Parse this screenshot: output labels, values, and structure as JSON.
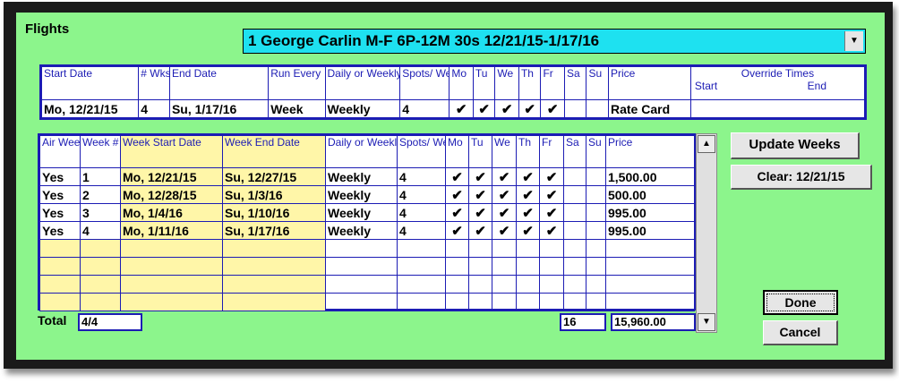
{
  "title": "Flights",
  "flight_select": {
    "value": "1 George Carlin M-F 6P-12M 30s 12/21/15-1/17/16"
  },
  "summary": {
    "headers": {
      "start_date": "Start Date",
      "wks": "# Wks",
      "end_date": "End Date",
      "run_every": "Run Every",
      "daily_weekly": "Daily or Weekly",
      "spots_week": "Spots/ Week",
      "mo": "Mo",
      "tu": "Tu",
      "we": "We",
      "th": "Th",
      "fr": "Fr",
      "sa": "Sa",
      "su": "Su",
      "price": "Price",
      "override": "Override Times",
      "override_start": "Start",
      "override_end": "End"
    },
    "row": {
      "start_date": "Mo, 12/21/15",
      "wks": "4",
      "end_date": "Su, 1/17/16",
      "run_every": "Week",
      "daily_weekly": "Weekly",
      "spots_week": "4",
      "mo": "✔",
      "tu": "✔",
      "we": "✔",
      "th": "✔",
      "fr": "✔",
      "sa": "",
      "su": "",
      "price": "Rate Card",
      "override": ""
    }
  },
  "weeks": {
    "headers": {
      "air_week": "Air Week",
      "week_num": "Week #",
      "week_start": "Week Start Date",
      "week_end": "Week End Date",
      "daily_weekly": "Daily or Weekly",
      "spots_week": "Spots/ Week",
      "mo": "Mo",
      "tu": "Tu",
      "we": "We",
      "th": "Th",
      "fr": "Fr",
      "sa": "Sa",
      "su": "Su",
      "price": "Price"
    },
    "rows": [
      {
        "air": "Yes",
        "num": "1",
        "start": "Mo, 12/21/15",
        "end": "Su, 12/27/15",
        "dw": "Weekly",
        "spots": "4",
        "mo": "✔",
        "tu": "✔",
        "we": "✔",
        "th": "✔",
        "fr": "✔",
        "sa": "",
        "su": "",
        "price": "1,500.00"
      },
      {
        "air": "Yes",
        "num": "2",
        "start": "Mo, 12/28/15",
        "end": "Su, 1/3/16",
        "dw": "Weekly",
        "spots": "4",
        "mo": "✔",
        "tu": "✔",
        "we": "✔",
        "th": "✔",
        "fr": "✔",
        "sa": "",
        "su": "",
        "price": "500.00"
      },
      {
        "air": "Yes",
        "num": "3",
        "start": "Mo, 1/4/16",
        "end": "Su, 1/10/16",
        "dw": "Weekly",
        "spots": "4",
        "mo": "✔",
        "tu": "✔",
        "we": "✔",
        "th": "✔",
        "fr": "✔",
        "sa": "",
        "su": "",
        "price": "995.00"
      },
      {
        "air": "Yes",
        "num": "4",
        "start": "Mo, 1/11/16",
        "end": "Su, 1/17/16",
        "dw": "Weekly",
        "spots": "4",
        "mo": "✔",
        "tu": "✔",
        "we": "✔",
        "th": "✔",
        "fr": "✔",
        "sa": "",
        "su": "",
        "price": "995.00"
      },
      {
        "air": "",
        "num": "",
        "start": "",
        "end": "",
        "dw": "",
        "spots": "",
        "mo": "",
        "tu": "",
        "we": "",
        "th": "",
        "fr": "",
        "sa": "",
        "su": "",
        "price": ""
      },
      {
        "air": "",
        "num": "",
        "start": "",
        "end": "",
        "dw": "",
        "spots": "",
        "mo": "",
        "tu": "",
        "we": "",
        "th": "",
        "fr": "",
        "sa": "",
        "su": "",
        "price": ""
      },
      {
        "air": "",
        "num": "",
        "start": "",
        "end": "",
        "dw": "",
        "spots": "",
        "mo": "",
        "tu": "",
        "we": "",
        "th": "",
        "fr": "",
        "sa": "",
        "su": "",
        "price": ""
      },
      {
        "air": "",
        "num": "",
        "start": "",
        "end": "",
        "dw": "",
        "spots": "",
        "mo": "",
        "tu": "",
        "we": "",
        "th": "",
        "fr": "",
        "sa": "",
        "su": "",
        "price": ""
      }
    ],
    "total": {
      "label": "Total",
      "weeks": "4/4",
      "spots": "16",
      "price": "15,960.00"
    }
  },
  "buttons": {
    "update_weeks": "Update Weeks",
    "clear": "Clear: 12/21/15",
    "done": "Done",
    "cancel": "Cancel"
  },
  "colors": {
    "panel": "#8cf58c",
    "dropdown": "#1ee1f0",
    "grid": "#1c1cb4",
    "highlight": "#fff6a8"
  }
}
